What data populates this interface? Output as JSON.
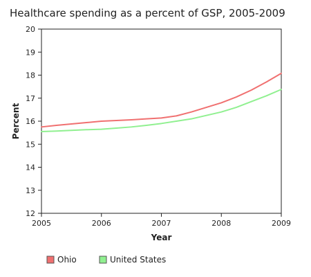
{
  "chart_data": {
    "type": "line",
    "title": "Healthcare spending as a percent of GSP, 2005-2009",
    "xlabel": "Year",
    "ylabel": "Percent",
    "xlim": [
      2005,
      2009
    ],
    "ylim": [
      12,
      20
    ],
    "xticks": [
      2005,
      2006,
      2007,
      2008,
      2009
    ],
    "yticks": [
      12,
      13,
      14,
      15,
      16,
      17,
      18,
      19,
      20
    ],
    "grid": false,
    "legend": "bottom-left",
    "series": [
      {
        "name": "Ohio",
        "color": "#f07070",
        "x": [
          2005,
          2005.25,
          2005.5,
          2005.75,
          2006,
          2006.25,
          2006.5,
          2006.75,
          2007,
          2007.25,
          2007.5,
          2007.75,
          2008,
          2008.25,
          2008.5,
          2008.75,
          2009
        ],
        "y": [
          15.75,
          15.82,
          15.88,
          15.94,
          16.0,
          16.03,
          16.06,
          16.1,
          16.14,
          16.23,
          16.4,
          16.6,
          16.8,
          17.05,
          17.35,
          17.7,
          18.08
        ]
      },
      {
        "name": "United States",
        "color": "#90f090",
        "x": [
          2005,
          2005.25,
          2005.5,
          2005.75,
          2006,
          2006.25,
          2006.5,
          2006.75,
          2007,
          2007.25,
          2007.5,
          2007.75,
          2008,
          2008.25,
          2008.5,
          2008.75,
          2009
        ],
        "y": [
          15.55,
          15.57,
          15.6,
          15.63,
          15.65,
          15.7,
          15.75,
          15.82,
          15.9,
          16.0,
          16.1,
          16.25,
          16.4,
          16.6,
          16.85,
          17.1,
          17.38
        ]
      }
    ]
  }
}
